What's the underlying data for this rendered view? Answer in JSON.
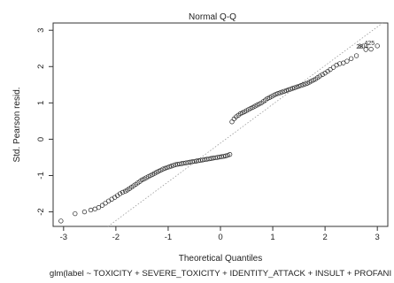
{
  "chart_data": {
    "type": "scatter",
    "title": "Normal Q-Q",
    "xlabel": "Theoretical Quantiles",
    "ylabel": "Std. Pearson resid.",
    "subtitle": "glm(label ~ TOXICITY + SEVERE_TOXICITY + IDENTITY_ATTACK + INSULT + PROFANI",
    "xlim": [
      -3.2,
      3.2
    ],
    "ylim": [
      -2.4,
      3.2
    ],
    "x_ticks": [
      -3,
      -2,
      -1,
      0,
      1,
      2,
      3
    ],
    "y_ticks": [
      -2,
      -1,
      0,
      1,
      2,
      3
    ],
    "grid": false,
    "reference_line": {
      "style": "dotted",
      "color": "#999999",
      "passes_through": [
        [
          -2.15,
          -2.4
        ],
        [
          3.1,
          3.2
        ]
      ]
    },
    "outlier_labels": [
      {
        "text": "425",
        "x": 3.0,
        "y": 2.57
      },
      {
        "text": "28",
        "x": 2.78,
        "y": 2.47
      },
      {
        "text": "804",
        "x": 2.88,
        "y": 2.48
      }
    ],
    "series": [
      {
        "x": [
          -3.05,
          -2.78,
          -2.6,
          -2.48,
          -2.4,
          -2.33,
          -2.26,
          -2.2,
          -2.14,
          -2.08,
          -2.02,
          -1.97,
          -1.92,
          -1.87,
          -1.82,
          -1.78,
          -1.74,
          -1.7,
          -1.66,
          -1.62,
          -1.58,
          -1.54,
          -1.5,
          -1.46,
          -1.42,
          -1.38,
          -1.34,
          -1.3,
          -1.26,
          -1.22,
          -1.18,
          -1.14,
          -1.1,
          -1.06,
          -1.02,
          -0.98,
          -0.94,
          -0.9,
          -0.86,
          -0.82,
          -0.78,
          -0.74,
          -0.7,
          -0.66,
          -0.62,
          -0.58,
          -0.54,
          -0.5,
          -0.46,
          -0.42,
          -0.38,
          -0.34,
          -0.3,
          -0.26,
          -0.22,
          -0.18,
          -0.14,
          -0.1,
          -0.06,
          -0.02,
          0.02,
          0.06,
          0.1,
          0.14,
          0.18,
          0.22,
          0.26,
          0.3,
          0.34,
          0.38,
          0.42,
          0.46,
          0.5,
          0.54,
          0.58,
          0.62,
          0.66,
          0.7,
          0.74,
          0.78,
          0.82,
          0.86,
          0.9,
          0.94,
          0.98,
          1.02,
          1.06,
          1.1,
          1.14,
          1.18,
          1.22,
          1.26,
          1.3,
          1.34,
          1.38,
          1.42,
          1.46,
          1.5,
          1.54,
          1.58,
          1.62,
          1.66,
          1.7,
          1.74,
          1.78,
          1.82,
          1.86,
          1.9,
          1.95,
          2.0,
          2.05,
          2.1,
          2.16,
          2.22,
          2.28,
          2.35,
          2.42,
          2.5,
          2.6,
          2.78,
          2.88,
          3.0
        ],
        "y": [
          -2.25,
          -2.05,
          -2.0,
          -1.95,
          -1.92,
          -1.88,
          -1.82,
          -1.76,
          -1.7,
          -1.65,
          -1.6,
          -1.55,
          -1.5,
          -1.46,
          -1.43,
          -1.4,
          -1.36,
          -1.32,
          -1.28,
          -1.24,
          -1.2,
          -1.16,
          -1.12,
          -1.09,
          -1.06,
          -1.03,
          -1.0,
          -0.97,
          -0.94,
          -0.91,
          -0.88,
          -0.85,
          -0.82,
          -0.8,
          -0.78,
          -0.76,
          -0.74,
          -0.72,
          -0.7,
          -0.69,
          -0.68,
          -0.67,
          -0.66,
          -0.65,
          -0.64,
          -0.63,
          -0.62,
          -0.61,
          -0.6,
          -0.59,
          -0.58,
          -0.57,
          -0.56,
          -0.55,
          -0.54,
          -0.53,
          -0.52,
          -0.51,
          -0.5,
          -0.49,
          -0.48,
          -0.47,
          -0.46,
          -0.44,
          -0.42,
          0.48,
          0.56,
          0.62,
          0.66,
          0.7,
          0.73,
          0.76,
          0.79,
          0.82,
          0.85,
          0.88,
          0.91,
          0.94,
          0.97,
          1.0,
          1.04,
          1.08,
          1.12,
          1.15,
          1.18,
          1.21,
          1.24,
          1.26,
          1.28,
          1.3,
          1.32,
          1.34,
          1.36,
          1.38,
          1.4,
          1.42,
          1.44,
          1.46,
          1.48,
          1.5,
          1.52,
          1.54,
          1.57,
          1.6,
          1.63,
          1.66,
          1.7,
          1.74,
          1.78,
          1.82,
          1.87,
          1.92,
          1.98,
          2.04,
          2.08,
          2.1,
          2.15,
          2.22,
          2.3,
          2.47,
          2.48,
          2.57
        ]
      }
    ]
  }
}
